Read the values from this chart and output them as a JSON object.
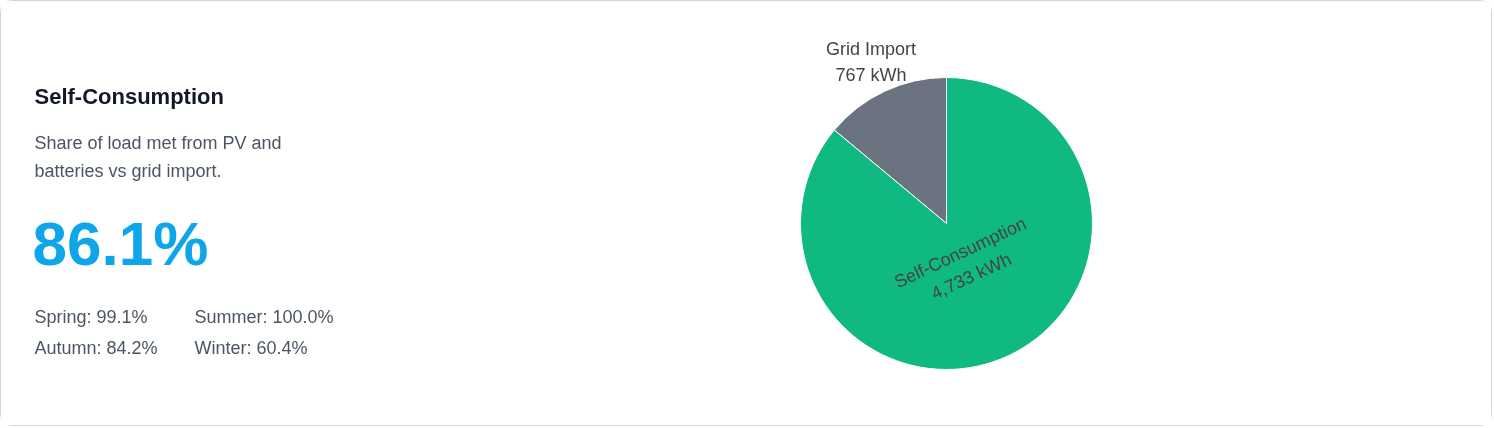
{
  "chart_data": [
    {
      "type": "other",
      "title": "Self-Consumption",
      "subtitle": "Share of load met from PV and batteries vs grid import.",
      "annotations": [
        "86.1%",
        "Spring: 99.1%",
        "Summer: 100.0%",
        "Autumn: 84.2%",
        "Winter: 60.4%"
      ]
    },
    {
      "type": "pie",
      "categories": [
        "Grid Import",
        "Self-Consumption"
      ],
      "values": [
        767,
        4733
      ],
      "colors": [
        "#6b7280",
        "#10b981"
      ],
      "value_labels": [
        "767 kWh",
        "4,733 kWh"
      ],
      "legend": false
    }
  ]
}
